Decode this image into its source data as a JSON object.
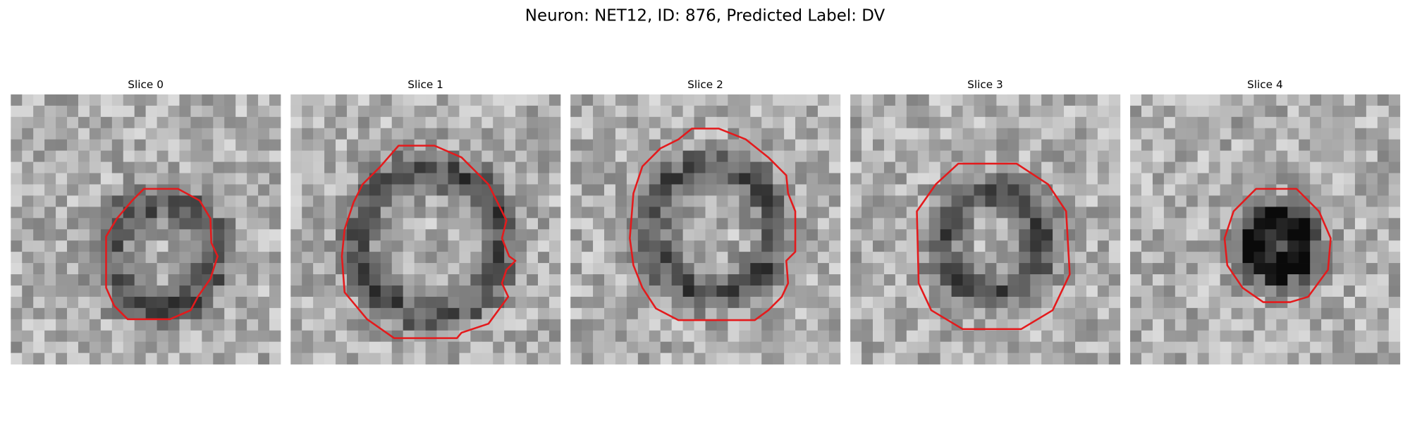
{
  "title": "Neuron: NET12, ID: 876, Predicted Label: DV",
  "panels": [
    {
      "title": "Slice 0"
    },
    {
      "title": "Slice 1"
    },
    {
      "title": "Slice 2"
    },
    {
      "title": "Slice 3"
    },
    {
      "title": "Slice 4"
    }
  ]
}
